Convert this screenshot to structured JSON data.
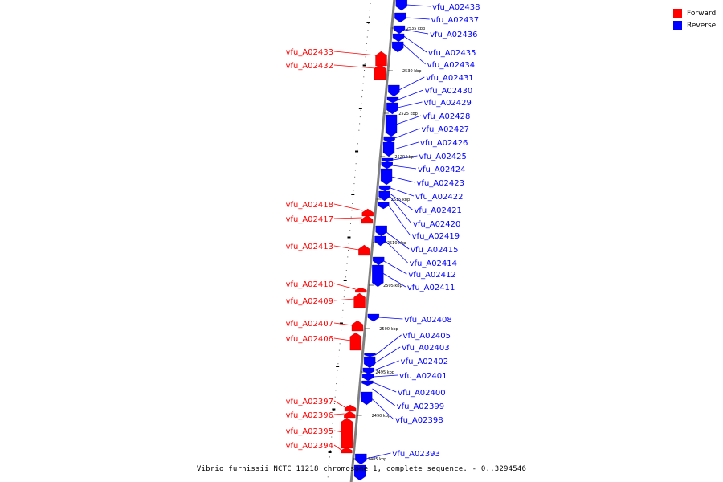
{
  "caption": "Vibrio furnissii NCTC 11218 chromosome 1, complete sequence. - 0..3294546",
  "legend": [
    {
      "label": "Forward",
      "color": "#ff0000"
    },
    {
      "label": "Reverse",
      "color": "#0000ff"
    }
  ],
  "colors": {
    "forward": "#ff0000",
    "reverse": "#0000ff",
    "backbone": "#808080"
  },
  "ticks": [
    "2535 kbp",
    "2530 kbp",
    "2525 kbp",
    "2520 kbp",
    "2515 kbp",
    "2510 kbp",
    "2505 kbp",
    "2500 kbp",
    "2495 kbp",
    "2490 kbp",
    "2485 kbp"
  ],
  "forward_genes": [
    "vfu_A02433",
    "vfu_A02432",
    "vfu_A02418",
    "vfu_A02417",
    "vfu_A02413",
    "vfu_A02410",
    "vfu_A02409",
    "vfu_A02407",
    "vfu_A02406",
    "vfu_A02397",
    "vfu_A02396",
    "vfu_A02395",
    "vfu_A02394"
  ],
  "reverse_genes": [
    "vfu_A02438",
    "vfu_A02437",
    "vfu_A02436",
    "vfu_A02435",
    "vfu_A02434",
    "vfu_A02431",
    "vfu_A02430",
    "vfu_A02429",
    "vfu_A02428",
    "vfu_A02427",
    "vfu_A02426",
    "vfu_A02425",
    "vfu_A02424",
    "vfu_A02423",
    "vfu_A02422",
    "vfu_A02421",
    "vfu_A02420",
    "vfu_A02419",
    "vfu_A02415",
    "vfu_A02414",
    "vfu_A02412",
    "vfu_A02411",
    "vfu_A02408",
    "vfu_A02405",
    "vfu_A02403",
    "vfu_A02402",
    "vfu_A02401",
    "vfu_A02400",
    "vfu_A02399",
    "vfu_A02398",
    "vfu_A02393"
  ]
}
